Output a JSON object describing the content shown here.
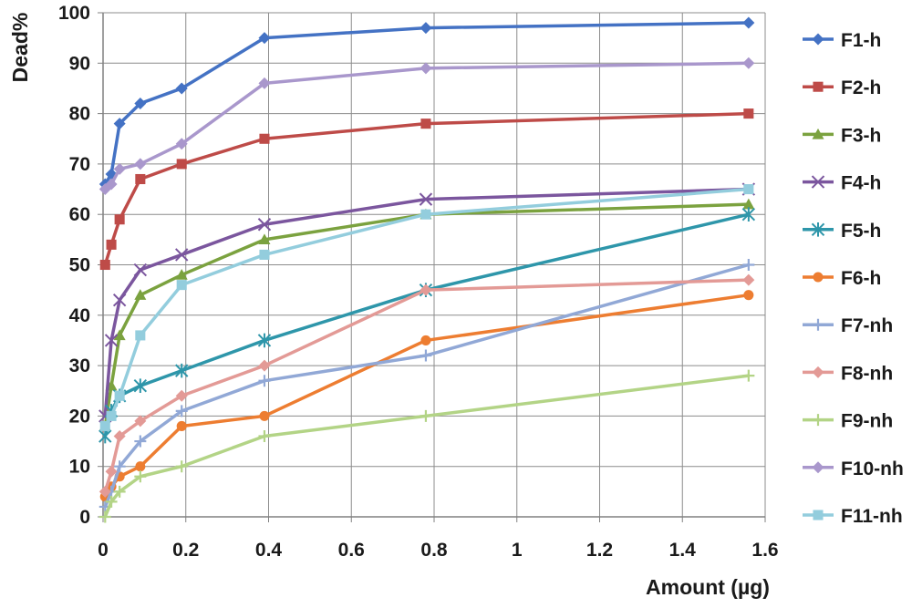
{
  "chart_data": {
    "type": "line",
    "xlabel": "Amount (µg)",
    "ylabel": "Dead%",
    "xlim": [
      0,
      1.6
    ],
    "ylim": [
      0,
      100
    ],
    "xticks": [
      "0",
      "0.2",
      "0.4",
      "0.6",
      "0.8",
      "1",
      "1.2",
      "1.4",
      "1.6"
    ],
    "yticks": [
      "0",
      "10",
      "20",
      "30",
      "40",
      "50",
      "60",
      "70",
      "80",
      "90",
      "100"
    ],
    "grid": "horizontal and vertical",
    "legend_position": "right",
    "x": [
      0.005,
      0.02,
      0.04,
      0.09,
      0.19,
      0.39,
      0.78,
      1.56
    ],
    "series": [
      {
        "name": "F1-h",
        "color": "#4472C4",
        "marker": "diamond",
        "values": [
          66,
          68,
          78,
          82,
          85,
          95,
          97,
          98
        ]
      },
      {
        "name": "F2-h",
        "color": "#BE4B48",
        "marker": "square",
        "values": [
          50,
          54,
          59,
          67,
          70,
          75,
          78,
          80
        ]
      },
      {
        "name": "F3-h",
        "color": "#7BA23F",
        "marker": "triangle",
        "values": [
          18,
          26,
          36,
          44,
          48,
          55,
          60,
          62
        ]
      },
      {
        "name": "F4-h",
        "color": "#7B569E",
        "marker": "x",
        "values": [
          20,
          35,
          43,
          49,
          52,
          58,
          63,
          65
        ]
      },
      {
        "name": "F5-h",
        "color": "#2E96AA",
        "marker": "star",
        "values": [
          16,
          21,
          24,
          26,
          29,
          35,
          45,
          60
        ]
      },
      {
        "name": "F6-h",
        "color": "#ED7D31",
        "marker": "circle",
        "values": [
          4,
          6,
          8,
          10,
          18,
          20,
          35,
          44
        ]
      },
      {
        "name": "F7-nh",
        "color": "#91A8D6",
        "marker": "plus",
        "values": [
          2,
          5,
          10,
          15,
          21,
          27,
          32,
          50
        ]
      },
      {
        "name": "F8-nh",
        "color": "#E39A96",
        "marker": "diamond",
        "values": [
          5,
          9,
          16,
          19,
          24,
          30,
          45,
          47
        ]
      },
      {
        "name": "F9-nh",
        "color": "#B3D486",
        "marker": "plus",
        "values": [
          0,
          3,
          5,
          8,
          10,
          16,
          20,
          28
        ]
      },
      {
        "name": "F10-nh",
        "color": "#A997CC",
        "marker": "diamond",
        "values": [
          65,
          66,
          69,
          70,
          74,
          86,
          89,
          90
        ]
      },
      {
        "name": "F11-nh",
        "color": "#93CDDD",
        "marker": "square",
        "values": [
          18,
          20,
          24,
          36,
          46,
          52,
          60,
          65
        ]
      }
    ]
  }
}
